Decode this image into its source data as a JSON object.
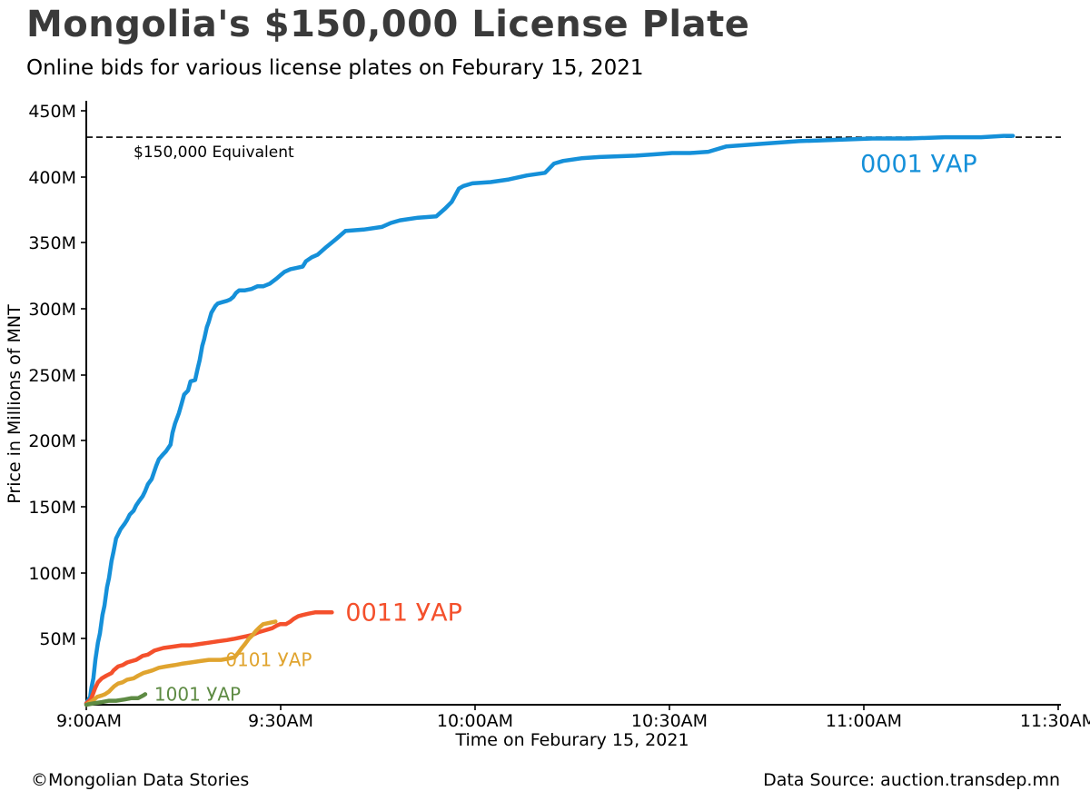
{
  "footer": {
    "credit": "©Mongolian Data Stories",
    "source": "Data Source: auction.transdep.mn"
  },
  "chart_data": {
    "type": "line",
    "title": "Mongolia's $150,000 License Plate",
    "subtitle": "Online bids for various license plates on Feburary 15, 2021",
    "xlabel": "Time on Feburary 15, 2021",
    "ylabel": "Price in Millions of MNT",
    "x_axis": {
      "unit": "minutes after 9:00AM",
      "range": [
        0,
        150
      ],
      "ticks": [
        0,
        30,
        60,
        90,
        120,
        150
      ],
      "tick_labels": [
        "9:00AM",
        "9:30AM",
        "10:00AM",
        "10:30AM",
        "11:00AM",
        "11:30AM"
      ]
    },
    "y_axis": {
      "unit": "millions of MNT",
      "range": [
        0,
        450
      ],
      "ticks": [
        50,
        100,
        150,
        200,
        250,
        300,
        350,
        400,
        450
      ],
      "tick_labels": [
        "50M",
        "100M",
        "150M",
        "200M",
        "250M",
        "300M",
        "350M",
        "400M",
        "450M"
      ]
    },
    "reference_line": {
      "value": 430,
      "label": "$150,000 Equivalent"
    },
    "grid": false,
    "legend_position": "inline-end-of-line",
    "series": [
      {
        "name": "0001 УАР",
        "color": "#1590d9",
        "final_value": 431,
        "points": [
          [
            0,
            1
          ],
          [
            0.6,
            6
          ],
          [
            0.8,
            13
          ],
          [
            1.1,
            20
          ],
          [
            1.4,
            34
          ],
          [
            1.8,
            47
          ],
          [
            2.1,
            54
          ],
          [
            2.5,
            68
          ],
          [
            2.8,
            75
          ],
          [
            3.2,
            89
          ],
          [
            3.5,
            96
          ],
          [
            3.9,
            109
          ],
          [
            4.2,
            116
          ],
          [
            4.6,
            126
          ],
          [
            4.9,
            129
          ],
          [
            5.3,
            133
          ],
          [
            5.9,
            137
          ],
          [
            6.3,
            140
          ],
          [
            6.7,
            144
          ],
          [
            7.3,
            147
          ],
          [
            7.7,
            151
          ],
          [
            8.1,
            154
          ],
          [
            8.7,
            158
          ],
          [
            9.1,
            162
          ],
          [
            9.5,
            167
          ],
          [
            10.1,
            171
          ],
          [
            10.8,
            181
          ],
          [
            11.2,
            186
          ],
          [
            11.9,
            190
          ],
          [
            12.3,
            192
          ],
          [
            13,
            197
          ],
          [
            13.3,
            206
          ],
          [
            13.7,
            213
          ],
          [
            14.3,
            221
          ],
          [
            14.7,
            228
          ],
          [
            15.1,
            235
          ],
          [
            15.7,
            238
          ],
          [
            16.1,
            245
          ],
          [
            16.8,
            246
          ],
          [
            17.2,
            255
          ],
          [
            17.5,
            261
          ],
          [
            17.9,
            272
          ],
          [
            18.2,
            277
          ],
          [
            18.6,
            286
          ],
          [
            18.9,
            290
          ],
          [
            19.3,
            297
          ],
          [
            19.9,
            302
          ],
          [
            20.3,
            304
          ],
          [
            21,
            305
          ],
          [
            21.7,
            306
          ],
          [
            22.2,
            307
          ],
          [
            22.7,
            309
          ],
          [
            23.1,
            312
          ],
          [
            23.6,
            314
          ],
          [
            24.5,
            314
          ],
          [
            25.5,
            315
          ],
          [
            26.4,
            317
          ],
          [
            27.3,
            317
          ],
          [
            28.3,
            319
          ],
          [
            29.4,
            323
          ],
          [
            30.1,
            326
          ],
          [
            30.6,
            328
          ],
          [
            31.5,
            330
          ],
          [
            32.5,
            331
          ],
          [
            33.4,
            332
          ],
          [
            33.9,
            336
          ],
          [
            34.8,
            339
          ],
          [
            35.7,
            341
          ],
          [
            37.1,
            347
          ],
          [
            38.6,
            353
          ],
          [
            40,
            359
          ],
          [
            42.8,
            360
          ],
          [
            45.6,
            362
          ],
          [
            47,
            365
          ],
          [
            48.4,
            367
          ],
          [
            51.2,
            369
          ],
          [
            54,
            370
          ],
          [
            55.4,
            376
          ],
          [
            56.4,
            381
          ],
          [
            57.5,
            391
          ],
          [
            58.2,
            393
          ],
          [
            59.6,
            395
          ],
          [
            62.4,
            396
          ],
          [
            65.2,
            398
          ],
          [
            68,
            401
          ],
          [
            70.8,
            403
          ],
          [
            72.2,
            410
          ],
          [
            73.6,
            412
          ],
          [
            76.4,
            414
          ],
          [
            79.2,
            415
          ],
          [
            84.8,
            416
          ],
          [
            87.6,
            417
          ],
          [
            90.4,
            418
          ],
          [
            93.2,
            418
          ],
          [
            96,
            419
          ],
          [
            98.8,
            423
          ],
          [
            104.4,
            425
          ],
          [
            110,
            427
          ],
          [
            115.7,
            428
          ],
          [
            121.3,
            429
          ],
          [
            126.9,
            429
          ],
          [
            132.5,
            430
          ],
          [
            138.1,
            430
          ],
          [
            141.6,
            431
          ],
          [
            143,
            431
          ]
        ]
      },
      {
        "name": "0011 УАР",
        "color": "#f4502c",
        "final_value": 70,
        "points": [
          [
            0,
            1
          ],
          [
            0.7,
            4
          ],
          [
            1.1,
            9
          ],
          [
            1.4,
            13
          ],
          [
            1.8,
            17
          ],
          [
            2.4,
            20
          ],
          [
            3.1,
            22
          ],
          [
            3.9,
            24
          ],
          [
            4.2,
            26
          ],
          [
            4.9,
            29
          ],
          [
            5.6,
            30
          ],
          [
            6.3,
            32
          ],
          [
            7,
            33
          ],
          [
            7.7,
            34
          ],
          [
            8.7,
            37
          ],
          [
            9.5,
            38
          ],
          [
            10.5,
            41
          ],
          [
            11.9,
            43
          ],
          [
            13.3,
            44
          ],
          [
            14.7,
            45
          ],
          [
            16.1,
            45
          ],
          [
            17.5,
            46
          ],
          [
            18.9,
            47
          ],
          [
            20.3,
            48
          ],
          [
            21.7,
            49
          ],
          [
            22.9,
            50
          ],
          [
            23.8,
            51
          ],
          [
            24.8,
            52
          ],
          [
            25.7,
            53
          ],
          [
            26.6,
            55
          ],
          [
            28,
            57
          ],
          [
            28.7,
            58
          ],
          [
            29.4,
            60
          ],
          [
            29.9,
            61
          ],
          [
            30.8,
            61
          ],
          [
            31.5,
            63
          ],
          [
            32,
            65
          ],
          [
            32.7,
            67
          ],
          [
            33.4,
            68
          ],
          [
            34.3,
            69
          ],
          [
            35.3,
            70
          ],
          [
            37.9,
            70
          ]
        ]
      },
      {
        "name": "0101 УАР",
        "color": "#e0a42f",
        "final_value": 63,
        "points": [
          [
            0,
            0
          ],
          [
            1,
            3
          ],
          [
            1.7,
            6
          ],
          [
            2.4,
            7
          ],
          [
            2.9,
            8
          ],
          [
            3.5,
            10
          ],
          [
            3.9,
            12
          ],
          [
            4.3,
            14
          ],
          [
            4.9,
            16
          ],
          [
            5.6,
            17
          ],
          [
            6.3,
            19
          ],
          [
            7.3,
            20
          ],
          [
            8,
            22
          ],
          [
            8.8,
            24
          ],
          [
            9.5,
            25
          ],
          [
            10.2,
            26
          ],
          [
            11.2,
            28
          ],
          [
            12.3,
            29
          ],
          [
            13.6,
            30
          ],
          [
            14.7,
            31
          ],
          [
            16.1,
            32
          ],
          [
            17.5,
            33
          ],
          [
            18.9,
            34
          ],
          [
            20.8,
            34
          ],
          [
            22,
            35
          ],
          [
            22.9,
            36
          ],
          [
            23.4,
            39
          ],
          [
            24,
            43
          ],
          [
            24.5,
            46
          ],
          [
            25.1,
            50
          ],
          [
            25.7,
            53
          ],
          [
            26.2,
            56
          ],
          [
            26.8,
            59
          ],
          [
            27.3,
            61
          ],
          [
            28.2,
            62
          ],
          [
            29.2,
            63
          ]
        ]
      },
      {
        "name": "1001 УАР",
        "color": "#5e8b44",
        "final_value": 8,
        "points": [
          [
            0,
            0
          ],
          [
            1.1,
            1
          ],
          [
            2.4,
            2
          ],
          [
            3.5,
            3
          ],
          [
            4.6,
            3
          ],
          [
            5.9,
            4
          ],
          [
            7,
            5
          ],
          [
            8,
            5
          ],
          [
            8.8,
            7
          ],
          [
            9.1,
            8
          ]
        ]
      }
    ]
  }
}
